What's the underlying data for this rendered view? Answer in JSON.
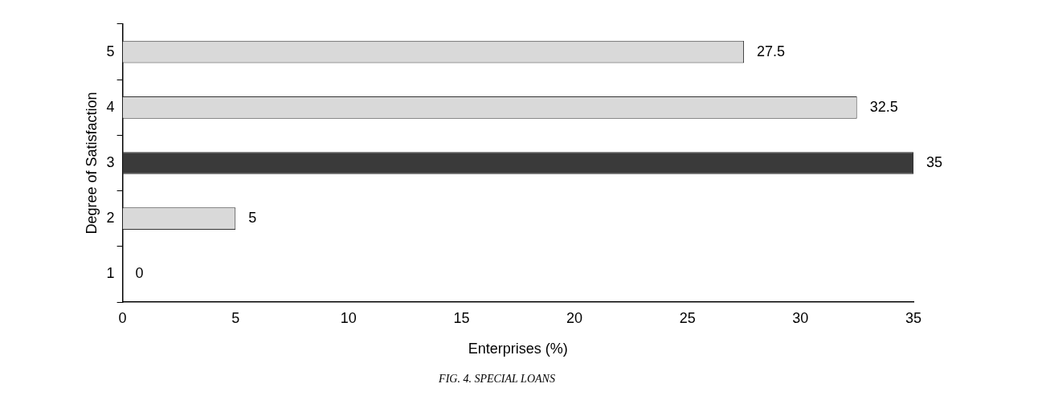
{
  "chart_data": {
    "type": "bar",
    "orientation": "horizontal",
    "xlabel": "Enterprises (%)",
    "ylabel": "Degree of Satisfaction",
    "categories": [
      "5",
      "4",
      "3",
      "2",
      "1"
    ],
    "values": [
      27.5,
      32.5,
      35,
      5,
      0
    ],
    "colors": [
      "#d9d9d9",
      "#d9d9d9",
      "#3a3a3a",
      "#d9d9d9",
      "#3a3a3a"
    ],
    "xlim": [
      0,
      35
    ],
    "xticks": [
      0,
      5,
      10,
      15,
      20,
      25,
      30,
      35
    ],
    "data_labels": true,
    "grid": false,
    "annotations": [
      "FIG. 4. SPECIAL LOANS"
    ]
  }
}
